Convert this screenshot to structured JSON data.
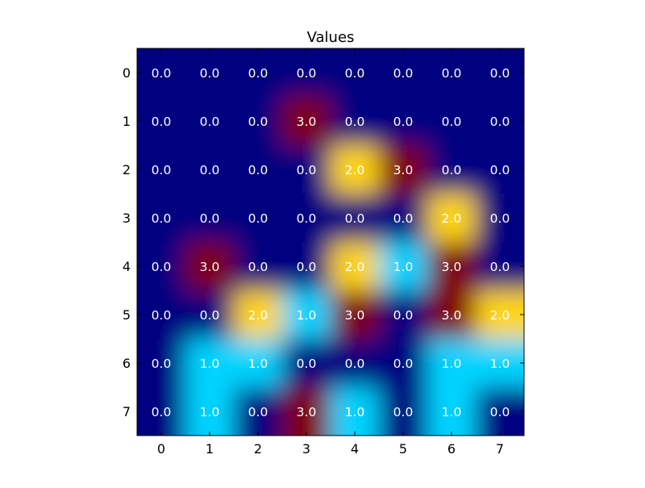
{
  "chart_data": {
    "type": "heatmap",
    "title": "Values",
    "xlabel": "",
    "ylabel": "",
    "x_ticks": [
      "0",
      "1",
      "2",
      "3",
      "4",
      "5",
      "6",
      "7"
    ],
    "y_ticks": [
      "0",
      "1",
      "2",
      "3",
      "4",
      "5",
      "6",
      "7"
    ],
    "colormap": "jet",
    "vmin": 0,
    "vmax": 3,
    "interpolation": "smooth",
    "grid": false,
    "values": [
      [
        0,
        0,
        0,
        0,
        0,
        0,
        0,
        0
      ],
      [
        0,
        0,
        0,
        3,
        0,
        0,
        0,
        0
      ],
      [
        0,
        0,
        0,
        0,
        2,
        3,
        0,
        0
      ],
      [
        0,
        0,
        0,
        0,
        0,
        0,
        2,
        0
      ],
      [
        0,
        3,
        0,
        0,
        2,
        1,
        3,
        0
      ],
      [
        0,
        0,
        2,
        1,
        3,
        0,
        3,
        2
      ],
      [
        0,
        1,
        1,
        0,
        0,
        0,
        1,
        1
      ],
      [
        0,
        1,
        0,
        3,
        1,
        0,
        1,
        0
      ]
    ],
    "cell_labels": [
      [
        "0.0",
        "0.0",
        "0.0",
        "0.0",
        "0.0",
        "0.0",
        "0.0",
        "0.0"
      ],
      [
        "0.0",
        "0.0",
        "0.0",
        "3.0",
        "0.0",
        "0.0",
        "0.0",
        "0.0"
      ],
      [
        "0.0",
        "0.0",
        "0.0",
        "0.0",
        "2.0",
        "3.0",
        "0.0",
        "0.0"
      ],
      [
        "0.0",
        "0.0",
        "0.0",
        "0.0",
        "0.0",
        "0.0",
        "2.0",
        "0.0"
      ],
      [
        "0.0",
        "3.0",
        "0.0",
        "0.0",
        "2.0",
        "1.0",
        "3.0",
        "0.0"
      ],
      [
        "0.0",
        "0.0",
        "2.0",
        "1.0",
        "3.0",
        "0.0",
        "3.0",
        "2.0"
      ],
      [
        "0.0",
        "1.0",
        "1.0",
        "0.0",
        "0.0",
        "0.0",
        "1.0",
        "1.0"
      ],
      [
        "0.0",
        "1.0",
        "0.0",
        "3.0",
        "1.0",
        "0.0",
        "1.0",
        "0.0"
      ]
    ]
  }
}
